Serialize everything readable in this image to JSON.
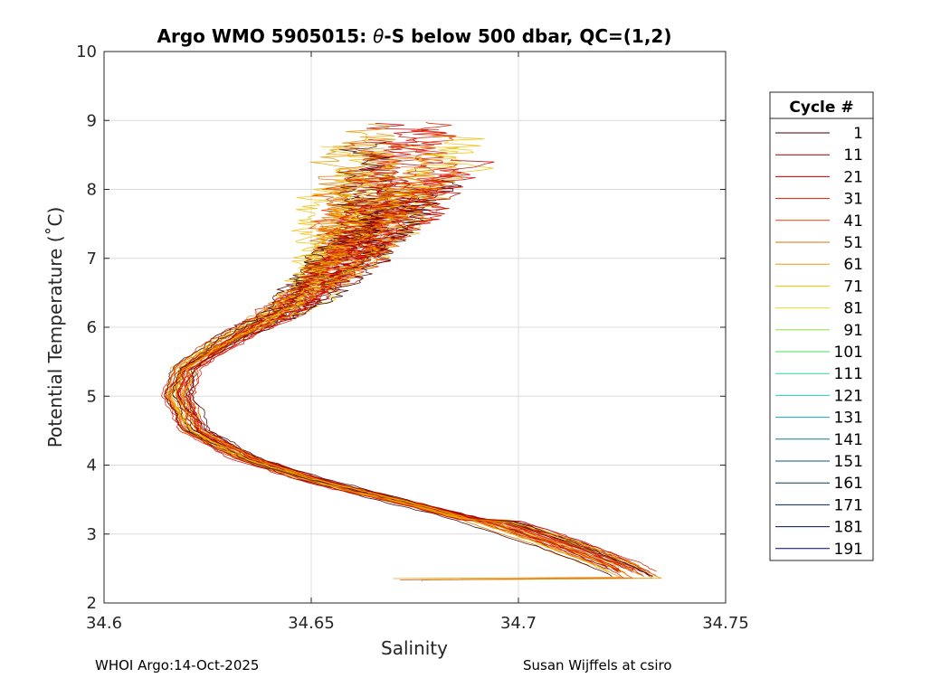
{
  "chart_data": {
    "type": "line",
    "title_prefix": "Argo WMO 5905015: ",
    "title_theta": "θ",
    "title_suffix": "-S below 500 dbar,  QC=(1,2)",
    "xlabel": "Salinity",
    "ylabel": "Potential Temperature (˚C)",
    "xlim": [
      34.6,
      34.75
    ],
    "ylim": [
      2,
      10
    ],
    "xticks": [
      "34.6",
      "34.65",
      "34.7",
      "34.75"
    ],
    "yticks": [
      "2",
      "3",
      "4",
      "5",
      "6",
      "7",
      "8",
      "9",
      "10"
    ],
    "grid": true,
    "legend": {
      "title": "Cycle #",
      "placement": "right",
      "entries": [
        {
          "label": "1",
          "color": "#3a0000"
        },
        {
          "label": "11",
          "color": "#8a0000"
        },
        {
          "label": "21",
          "color": "#c80000"
        },
        {
          "label": "31",
          "color": "#dc1a00"
        },
        {
          "label": "41",
          "color": "#e84000"
        },
        {
          "label": "51",
          "color": "#e07000"
        },
        {
          "label": "61",
          "color": "#e89a00"
        },
        {
          "label": "71",
          "color": "#f0c000"
        },
        {
          "label": "81",
          "color": "#e6dc28"
        },
        {
          "label": "91",
          "color": "#90e040"
        },
        {
          "label": "101",
          "color": "#40e060"
        },
        {
          "label": "111",
          "color": "#30d0a0"
        },
        {
          "label": "121",
          "color": "#20c8c0"
        },
        {
          "label": "131",
          "color": "#10a8c0"
        },
        {
          "label": "141",
          "color": "#108090"
        },
        {
          "label": "151",
          "color": "#0e5a7a"
        },
        {
          "label": "161",
          "color": "#0a3a6a"
        },
        {
          "label": "171",
          "color": "#08205a"
        },
        {
          "label": "181",
          "color": "#0a1040"
        },
        {
          "label": "191",
          "color": "#000060"
        }
      ]
    },
    "series_approximate_profile": {
      "description": "theta-S profiles for cycles shown in warm colors",
      "colors": [
        "#3a0000",
        "#8a0000",
        "#c80000",
        "#dc1a00",
        "#e84000",
        "#e07000",
        "#e89a00",
        "#f0c000"
      ],
      "base_profile": [
        {
          "s": 34.726,
          "t": 2.35
        },
        {
          "s": 34.72,
          "t": 2.55
        },
        {
          "s": 34.705,
          "t": 2.9
        },
        {
          "s": 34.69,
          "t": 3.2
        },
        {
          "s": 34.67,
          "t": 3.5
        },
        {
          "s": 34.65,
          "t": 3.8
        },
        {
          "s": 34.635,
          "t": 4.1
        },
        {
          "s": 34.622,
          "t": 4.5
        },
        {
          "s": 34.618,
          "t": 5.0
        },
        {
          "s": 34.62,
          "t": 5.4
        },
        {
          "s": 34.63,
          "t": 5.8
        },
        {
          "s": 34.645,
          "t": 6.3
        },
        {
          "s": 34.655,
          "t": 6.8
        },
        {
          "s": 34.662,
          "t": 7.3
        },
        {
          "s": 34.668,
          "t": 7.9
        },
        {
          "s": 34.67,
          "t": 8.3
        }
      ]
    }
  },
  "footer": {
    "left": "WHOI Argo:14-Oct-2025",
    "right": "Susan Wijffels at csiro"
  }
}
